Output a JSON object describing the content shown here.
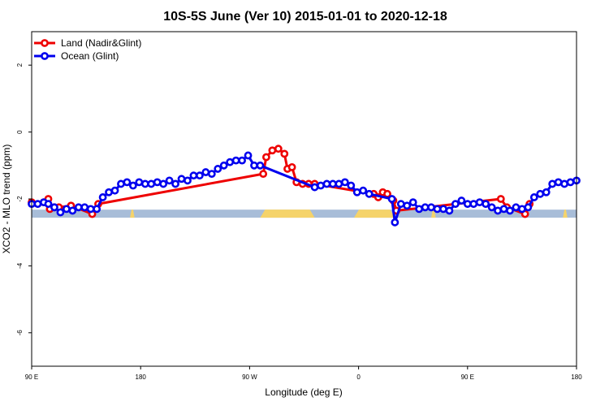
{
  "chart_data": {
    "type": "line",
    "title": "10S-5S June (Ver 10)   2015-01-01 to 2020-12-18",
    "xlabel": "Longitude (deg E)",
    "ylabel": "XCO2 - MLO trend (ppm)",
    "xlim": [
      90,
      450
    ],
    "ylim": [
      -7,
      3
    ],
    "xticks": [
      {
        "value": 90,
        "label": "90 E"
      },
      {
        "value": 162,
        "label": "180"
      },
      {
        "value": 234,
        "label": "90 W"
      },
      {
        "value": 306,
        "label": "0"
      },
      {
        "value": 378,
        "label": "90 E"
      },
      {
        "value": 450,
        "label": "180"
      }
    ],
    "yticks": [
      {
        "value": 2,
        "label": "2"
      },
      {
        "value": 0,
        "label": "0"
      },
      {
        "value": -2,
        "label": "-2"
      },
      {
        "value": -4,
        "label": "-4"
      },
      {
        "value": -6,
        "label": "-6"
      }
    ],
    "legend": {
      "position": "top-left"
    },
    "surface_band": {
      "y_range": [
        -2.56,
        -2.32
      ],
      "ocean_color": "#a8bdd8",
      "land_color": "#f5d36a",
      "land_segments": [
        [
          155,
          158
        ],
        [
          241,
          277
        ],
        [
          303,
          330
        ],
        [
          354,
          357
        ],
        [
          441,
          444
        ]
      ]
    },
    "series": [
      {
        "name": "Land (Nadir&Glint)",
        "color": "#ee0000",
        "x": [
          90,
          98,
          101,
          102,
          105,
          108,
          116,
          130,
          134,
          243,
          245,
          249,
          253,
          257,
          259,
          262,
          265,
          269,
          273,
          277,
          316,
          319,
          322,
          325,
          329,
          331,
          400,
          404,
          416,
          419
        ],
        "y": [
          -2.1,
          -2.1,
          -2.0,
          -2.3,
          -2.25,
          -2.25,
          -2.2,
          -2.45,
          -2.15,
          -1.25,
          -0.75,
          -0.55,
          -0.5,
          -0.65,
          -1.1,
          -1.05,
          -1.5,
          -1.55,
          -1.55,
          -1.55,
          -1.85,
          -1.95,
          -1.8,
          -1.85,
          -2.05,
          -2.35,
          -2.0,
          -2.25,
          -2.45,
          -2.15
        ]
      },
      {
        "name": "Ocean (Glint)",
        "color": "#0000ee",
        "x": [
          90,
          94,
          98,
          101,
          105,
          109,
          113,
          117,
          121,
          125,
          129,
          133,
          137,
          141,
          145,
          149,
          153,
          157,
          161,
          165,
          169,
          173,
          177,
          181,
          185,
          189,
          193,
          197,
          201,
          205,
          209,
          213,
          217,
          221,
          225,
          229,
          233,
          237,
          241,
          277,
          281,
          285,
          289,
          293,
          297,
          301,
          305,
          309,
          313,
          328,
          330,
          334,
          338,
          342,
          346,
          350,
          354,
          358,
          362,
          366,
          370,
          374,
          378,
          382,
          386,
          390,
          394,
          398,
          402,
          406,
          410,
          414,
          418,
          422,
          426,
          430,
          434,
          438,
          442,
          446,
          450
        ],
        "y": [
          -2.15,
          -2.15,
          -2.1,
          -2.15,
          -2.25,
          -2.4,
          -2.3,
          -2.35,
          -2.25,
          -2.25,
          -2.3,
          -2.3,
          -1.95,
          -1.8,
          -1.75,
          -1.55,
          -1.5,
          -1.6,
          -1.5,
          -1.55,
          -1.55,
          -1.5,
          -1.55,
          -1.45,
          -1.55,
          -1.4,
          -1.45,
          -1.3,
          -1.3,
          -1.2,
          -1.25,
          -1.1,
          -1.0,
          -0.9,
          -0.85,
          -0.85,
          -0.7,
          -1.0,
          -1.0,
          -1.65,
          -1.6,
          -1.55,
          -1.55,
          -1.55,
          -1.5,
          -1.6,
          -1.8,
          -1.75,
          -1.85,
          -2.0,
          -2.7,
          -2.15,
          -2.2,
          -2.1,
          -2.3,
          -2.25,
          -2.25,
          -2.3,
          -2.3,
          -2.35,
          -2.15,
          -2.05,
          -2.15,
          -2.15,
          -2.1,
          -2.15,
          -2.25,
          -2.35,
          -2.3,
          -2.35,
          -2.25,
          -2.3,
          -2.25,
          -1.95,
          -1.85,
          -1.8,
          -1.55,
          -1.5,
          -1.55,
          -1.5,
          -1.45
        ]
      }
    ]
  }
}
